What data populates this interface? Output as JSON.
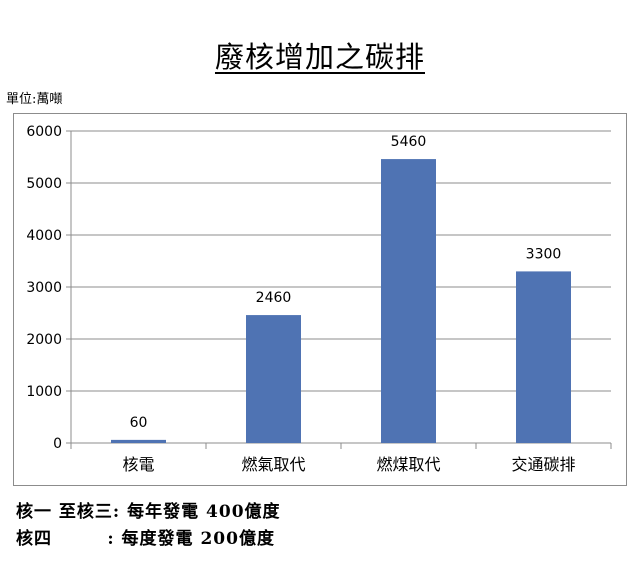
{
  "chart_data": {
    "type": "bar",
    "title": "廢核增加之碳排",
    "unit_label": "單位:萬噸",
    "categories": [
      "核電",
      "燃氣取代",
      "燃煤取代",
      "交通碳排"
    ],
    "values": [
      60,
      2460,
      5460,
      3300
    ],
    "data_labels": [
      "60",
      "2460",
      "5460",
      "3300"
    ],
    "yticks": [
      "0",
      "1000",
      "2000",
      "3000",
      "4000",
      "5000",
      "6000"
    ],
    "ylim": [
      0,
      6000
    ],
    "grid": true,
    "legend": "none",
    "bar_color": "#4f73b3",
    "grid_color": "#8c8c8c"
  },
  "notes": [
    "核一 至核三: 每年發電 400億度",
    "核四        : 每度發電 200億度"
  ]
}
